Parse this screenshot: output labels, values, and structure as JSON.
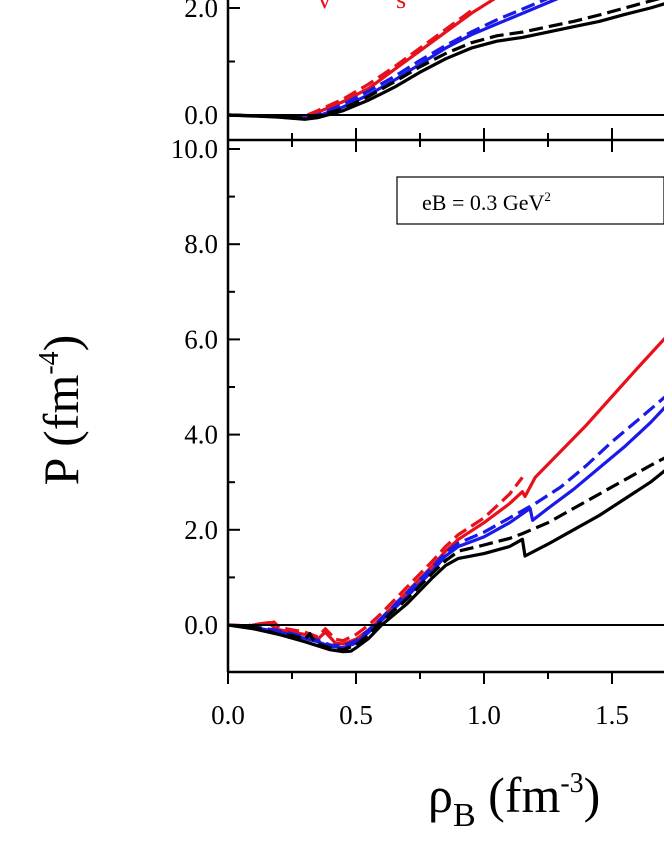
{
  "chart_data": [
    {
      "type": "line",
      "panel": "top",
      "ylim": [
        -0.6,
        2.4
      ],
      "xlim": [
        0.0,
        1.72
      ],
      "yticks": [
        0.0,
        2.0
      ],
      "ytick_labels": [
        "0.0",
        "2.0"
      ],
      "xticks": [
        0.0,
        0.5,
        1.0,
        1.5
      ],
      "partial_red_text": "v          s",
      "series": [
        {
          "color": "#e8101a",
          "style": "solid",
          "x": [
            0.0,
            0.15,
            0.25,
            0.3,
            0.35,
            0.45,
            0.55,
            0.65,
            0.75,
            0.85,
            0.95,
            1.0,
            1.05,
            1.1,
            1.2
          ],
          "y": [
            0.0,
            -0.02,
            -0.06,
            -0.04,
            0.05,
            0.25,
            0.5,
            0.85,
            1.2,
            1.55,
            1.9,
            2.05,
            2.2,
            2.32,
            2.5
          ]
        },
        {
          "color": "#e8101a",
          "style": "dashed",
          "x": [
            0.0,
            0.15,
            0.25,
            0.3,
            0.35,
            0.45,
            0.55,
            0.65,
            0.75,
            0.85,
            0.95
          ],
          "y": [
            0.0,
            -0.02,
            -0.04,
            -0.02,
            0.08,
            0.3,
            0.58,
            0.9,
            1.25,
            1.6,
            1.95
          ]
        },
        {
          "color": "#1a1ae8",
          "style": "solid",
          "x": [
            0.0,
            0.2,
            0.3,
            0.35,
            0.45,
            0.55,
            0.65,
            0.75,
            0.85,
            0.95,
            1.05,
            1.15,
            1.25,
            1.35
          ],
          "y": [
            0.0,
            -0.03,
            -0.06,
            -0.02,
            0.15,
            0.38,
            0.65,
            0.95,
            1.25,
            1.5,
            1.7,
            1.9,
            2.1,
            2.3
          ]
        },
        {
          "color": "#1a1ae8",
          "style": "dashed",
          "x": [
            0.0,
            0.2,
            0.3,
            0.35,
            0.45,
            0.55,
            0.65,
            0.75,
            0.85,
            0.95,
            1.05,
            1.15,
            1.25,
            1.32
          ],
          "y": [
            0.0,
            -0.03,
            -0.05,
            0.0,
            0.2,
            0.45,
            0.72,
            1.02,
            1.3,
            1.55,
            1.78,
            1.98,
            2.18,
            2.3
          ]
        },
        {
          "color": "#000000",
          "style": "solid",
          "x": [
            0.0,
            0.2,
            0.3,
            0.35,
            0.45,
            0.55,
            0.65,
            0.75,
            0.85,
            0.95,
            1.05,
            1.15,
            1.25,
            1.35,
            1.45,
            1.55,
            1.65,
            1.72
          ],
          "y": [
            0.0,
            -0.04,
            -0.08,
            -0.05,
            0.08,
            0.28,
            0.52,
            0.8,
            1.05,
            1.25,
            1.38,
            1.45,
            1.55,
            1.65,
            1.75,
            1.88,
            2.0,
            2.1
          ]
        },
        {
          "color": "#000000",
          "style": "dashed",
          "x": [
            0.0,
            0.2,
            0.3,
            0.35,
            0.45,
            0.55,
            0.65,
            0.75,
            0.85,
            0.95,
            1.05,
            1.15,
            1.25,
            1.35,
            1.45,
            1.55,
            1.65,
            1.72
          ],
          "y": [
            0.0,
            -0.03,
            -0.06,
            -0.02,
            0.12,
            0.35,
            0.62,
            0.9,
            1.15,
            1.35,
            1.48,
            1.55,
            1.65,
            1.75,
            1.87,
            2.0,
            2.13,
            2.22
          ]
        }
      ]
    },
    {
      "type": "line",
      "panel": "bottom",
      "ylim": [
        -1.0,
        10.0
      ],
      "xlim": [
        0.0,
        1.72
      ],
      "yticks": [
        0.0,
        2.0,
        4.0,
        6.0,
        8.0,
        10.0
      ],
      "ytick_labels": [
        "0.0",
        "2.0",
        "4.0",
        "6.0",
        "8.0",
        "10.0"
      ],
      "xticks": [
        0.0,
        0.5,
        1.0,
        1.5
      ],
      "xtick_labels": [
        "0.0",
        "0.5",
        "1.0",
        "1.5"
      ],
      "annotation": {
        "text": "eB = 0.3 GeV",
        "sup": "2"
      },
      "ylabel": {
        "main": "P (fm",
        "sup": "-4",
        "end": ")"
      },
      "xlabel": {
        "rho": "ρ",
        "sub": "B",
        "main": " (fm",
        "sup": "-3",
        "end": ")"
      },
      "series": [
        {
          "color": "#e8101a",
          "style": "solid",
          "x": [
            0.0,
            0.08,
            0.12,
            0.16,
            0.18,
            0.2,
            0.3,
            0.35,
            0.38,
            0.42,
            0.45,
            0.5,
            0.55,
            0.6,
            0.7,
            0.8,
            0.85,
            0.9,
            1.0,
            1.1,
            1.15,
            1.16,
            1.2,
            1.3,
            1.4,
            1.5,
            1.6,
            1.72
          ],
          "y": [
            0.0,
            -0.02,
            0.02,
            0.05,
            -0.05,
            -0.1,
            -0.2,
            -0.3,
            -0.15,
            -0.38,
            -0.4,
            -0.3,
            -0.1,
            0.15,
            0.7,
            1.25,
            1.55,
            1.8,
            2.15,
            2.55,
            2.8,
            2.7,
            3.1,
            3.65,
            4.2,
            4.8,
            5.4,
            6.1
          ]
        },
        {
          "color": "#e8101a",
          "style": "dashed",
          "x": [
            0.0,
            0.1,
            0.15,
            0.18,
            0.2,
            0.3,
            0.35,
            0.38,
            0.42,
            0.45,
            0.5,
            0.55,
            0.6,
            0.7,
            0.8,
            0.85,
            0.9,
            1.0,
            1.1,
            1.15
          ],
          "y": [
            0.0,
            -0.02,
            0.03,
            0.06,
            -0.05,
            -0.15,
            -0.25,
            -0.08,
            -0.3,
            -0.33,
            -0.2,
            0.0,
            0.25,
            0.8,
            1.35,
            1.65,
            1.9,
            2.25,
            2.75,
            3.1
          ]
        },
        {
          "color": "#1a1ae8",
          "style": "solid",
          "x": [
            0.0,
            0.1,
            0.2,
            0.3,
            0.35,
            0.4,
            0.45,
            0.5,
            0.55,
            0.6,
            0.7,
            0.8,
            0.85,
            0.9,
            1.0,
            1.1,
            1.18,
            1.19,
            1.25,
            1.35,
            1.45,
            1.55,
            1.65,
            1.72
          ],
          "y": [
            0.0,
            -0.05,
            -0.15,
            -0.28,
            -0.35,
            -0.45,
            -0.48,
            -0.38,
            -0.15,
            0.1,
            0.6,
            1.15,
            1.45,
            1.65,
            1.85,
            2.15,
            2.45,
            2.2,
            2.45,
            2.85,
            3.3,
            3.75,
            4.25,
            4.65
          ]
        },
        {
          "color": "#1a1ae8",
          "style": "dashed",
          "x": [
            0.0,
            0.1,
            0.2,
            0.3,
            0.35,
            0.4,
            0.45,
            0.5,
            0.55,
            0.6,
            0.7,
            0.8,
            0.85,
            0.9,
            1.0,
            1.1,
            1.2,
            1.3,
            1.4,
            1.5,
            1.6,
            1.72
          ],
          "y": [
            0.0,
            -0.04,
            -0.12,
            -0.25,
            -0.32,
            -0.42,
            -0.44,
            -0.33,
            -0.1,
            0.15,
            0.68,
            1.22,
            1.52,
            1.72,
            1.95,
            2.25,
            2.55,
            2.9,
            3.35,
            3.85,
            4.3,
            4.85
          ]
        },
        {
          "color": "#000000",
          "style": "solid",
          "x": [
            0.0,
            0.1,
            0.2,
            0.3,
            0.4,
            0.45,
            0.48,
            0.5,
            0.55,
            0.6,
            0.7,
            0.8,
            0.85,
            0.9,
            1.0,
            1.1,
            1.15,
            1.16,
            1.25,
            1.35,
            1.45,
            1.55,
            1.65,
            1.72
          ],
          "y": [
            0.0,
            -0.08,
            -0.2,
            -0.35,
            -0.52,
            -0.56,
            -0.55,
            -0.48,
            -0.28,
            0.0,
            0.45,
            1.0,
            1.25,
            1.4,
            1.5,
            1.65,
            1.8,
            1.45,
            1.7,
            2.0,
            2.3,
            2.65,
            3.0,
            3.3
          ]
        },
        {
          "color": "#000000",
          "style": "dashed",
          "x": [
            0.08,
            0.1,
            0.15,
            0.2,
            0.25,
            0.3,
            0.32,
            0.34,
            0.4,
            0.45,
            0.5,
            0.55,
            0.6,
            0.7,
            0.8,
            0.85,
            0.9,
            1.0,
            1.1,
            1.15,
            1.25,
            1.35,
            1.45,
            1.55,
            1.65,
            1.72
          ],
          "y": [
            0.0,
            -0.04,
            -0.12,
            -0.2,
            -0.22,
            -0.3,
            -0.18,
            -0.38,
            -0.48,
            -0.52,
            -0.42,
            -0.2,
            0.08,
            0.55,
            1.1,
            1.35,
            1.55,
            1.68,
            1.82,
            1.92,
            2.15,
            2.45,
            2.75,
            3.05,
            3.35,
            3.55
          ]
        }
      ]
    }
  ]
}
